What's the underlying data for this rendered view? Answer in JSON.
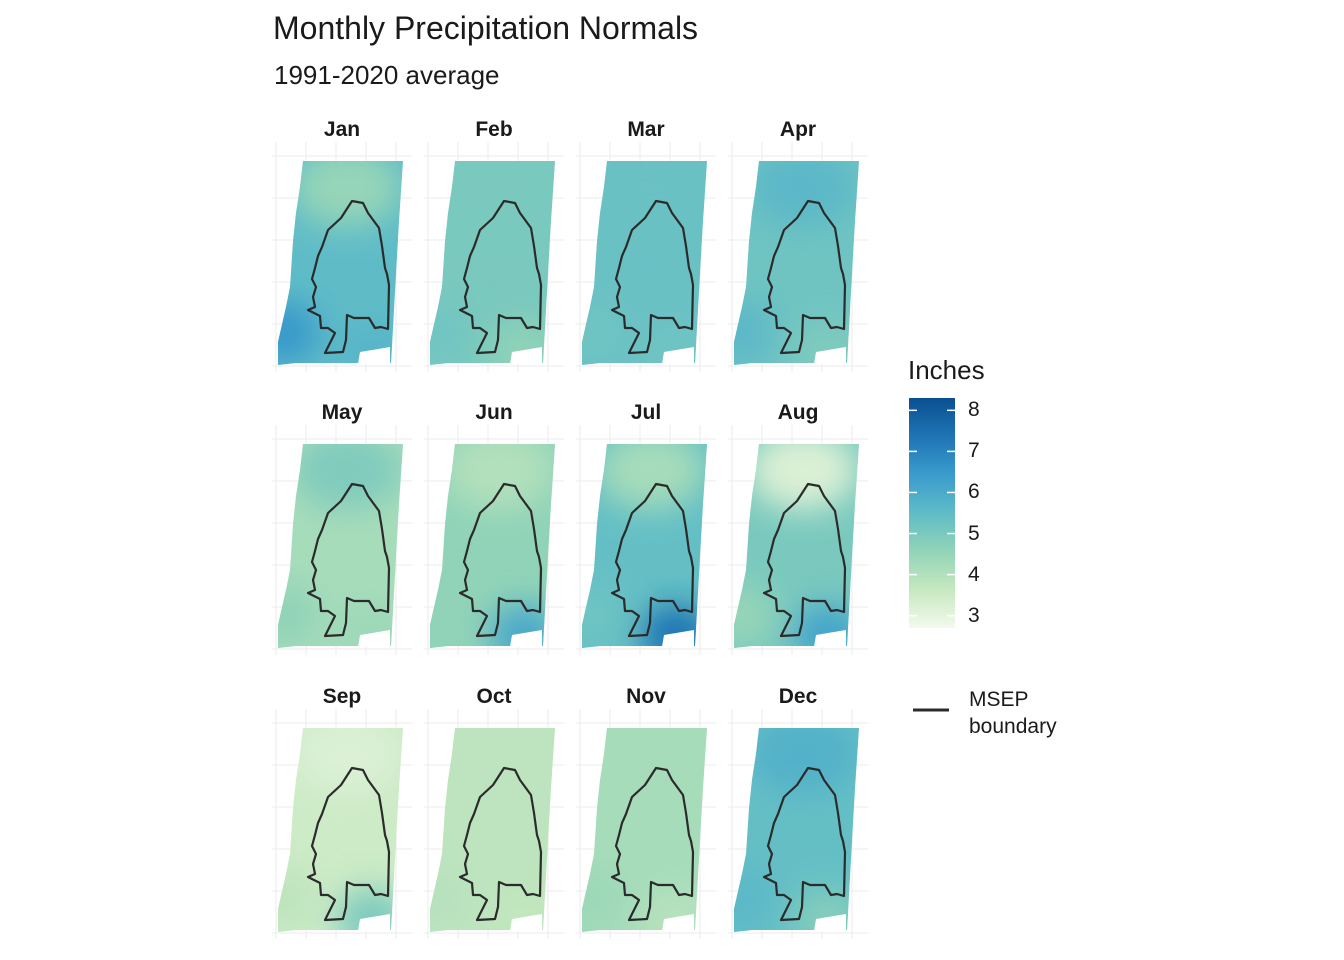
{
  "title": "Monthly Precipitation Normals",
  "subtitle": "1991-2020 average",
  "legend": {
    "title": "Inches",
    "ticks": [
      {
        "value": 8,
        "label": "8"
      },
      {
        "value": 7,
        "label": "7"
      },
      {
        "value": 6,
        "label": "6"
      },
      {
        "value": 5,
        "label": "5"
      },
      {
        "value": 4,
        "label": "4"
      },
      {
        "value": 3,
        "label": "3"
      }
    ],
    "range": [
      2.7,
      8.3
    ],
    "colors": [
      "#f3faee",
      "#c6e8bf",
      "#92d4b7",
      "#5fbcc7",
      "#3a9bcd",
      "#1e74b4",
      "#0a4f90"
    ],
    "boundary_label": "MSEP boundary",
    "boundary_color": "#2b2b2b"
  },
  "months": [
    {
      "label": "Jan",
      "north": 4.5,
      "west": 6.5,
      "center": 5.5,
      "southeast": 5.7
    },
    {
      "label": "Feb",
      "north": 5.0,
      "west": 5.2,
      "center": 5.0,
      "southeast": 4.6
    },
    {
      "label": "Mar",
      "north": 5.3,
      "west": 5.2,
      "center": 5.3,
      "southeast": 5.2
    },
    {
      "label": "Apr",
      "north": 5.6,
      "west": 5.6,
      "center": 5.2,
      "southeast": 4.9
    },
    {
      "label": "May",
      "north": 4.9,
      "west": 4.6,
      "center": 4.2,
      "southeast": 4.4
    },
    {
      "label": "Jun",
      "north": 4.0,
      "west": 4.6,
      "center": 4.6,
      "southeast": 6.1
    },
    {
      "label": "Jul",
      "north": 4.2,
      "west": 5.2,
      "center": 5.4,
      "southeast": 7.4
    },
    {
      "label": "Aug",
      "north": 3.2,
      "west": 4.5,
      "center": 5.0,
      "southeast": 6.2
    },
    {
      "label": "Sep",
      "north": 3.2,
      "west": 3.8,
      "center": 3.5,
      "southeast": 5.0
    },
    {
      "label": "Oct",
      "north": 3.8,
      "west": 3.9,
      "center": 3.8,
      "southeast": 3.7
    },
    {
      "label": "Nov",
      "north": 4.2,
      "west": 4.4,
      "center": 4.2,
      "southeast": 3.9
    },
    {
      "label": "Dec",
      "north": 5.8,
      "west": 5.6,
      "center": 5.4,
      "southeast": 4.8
    }
  ]
}
